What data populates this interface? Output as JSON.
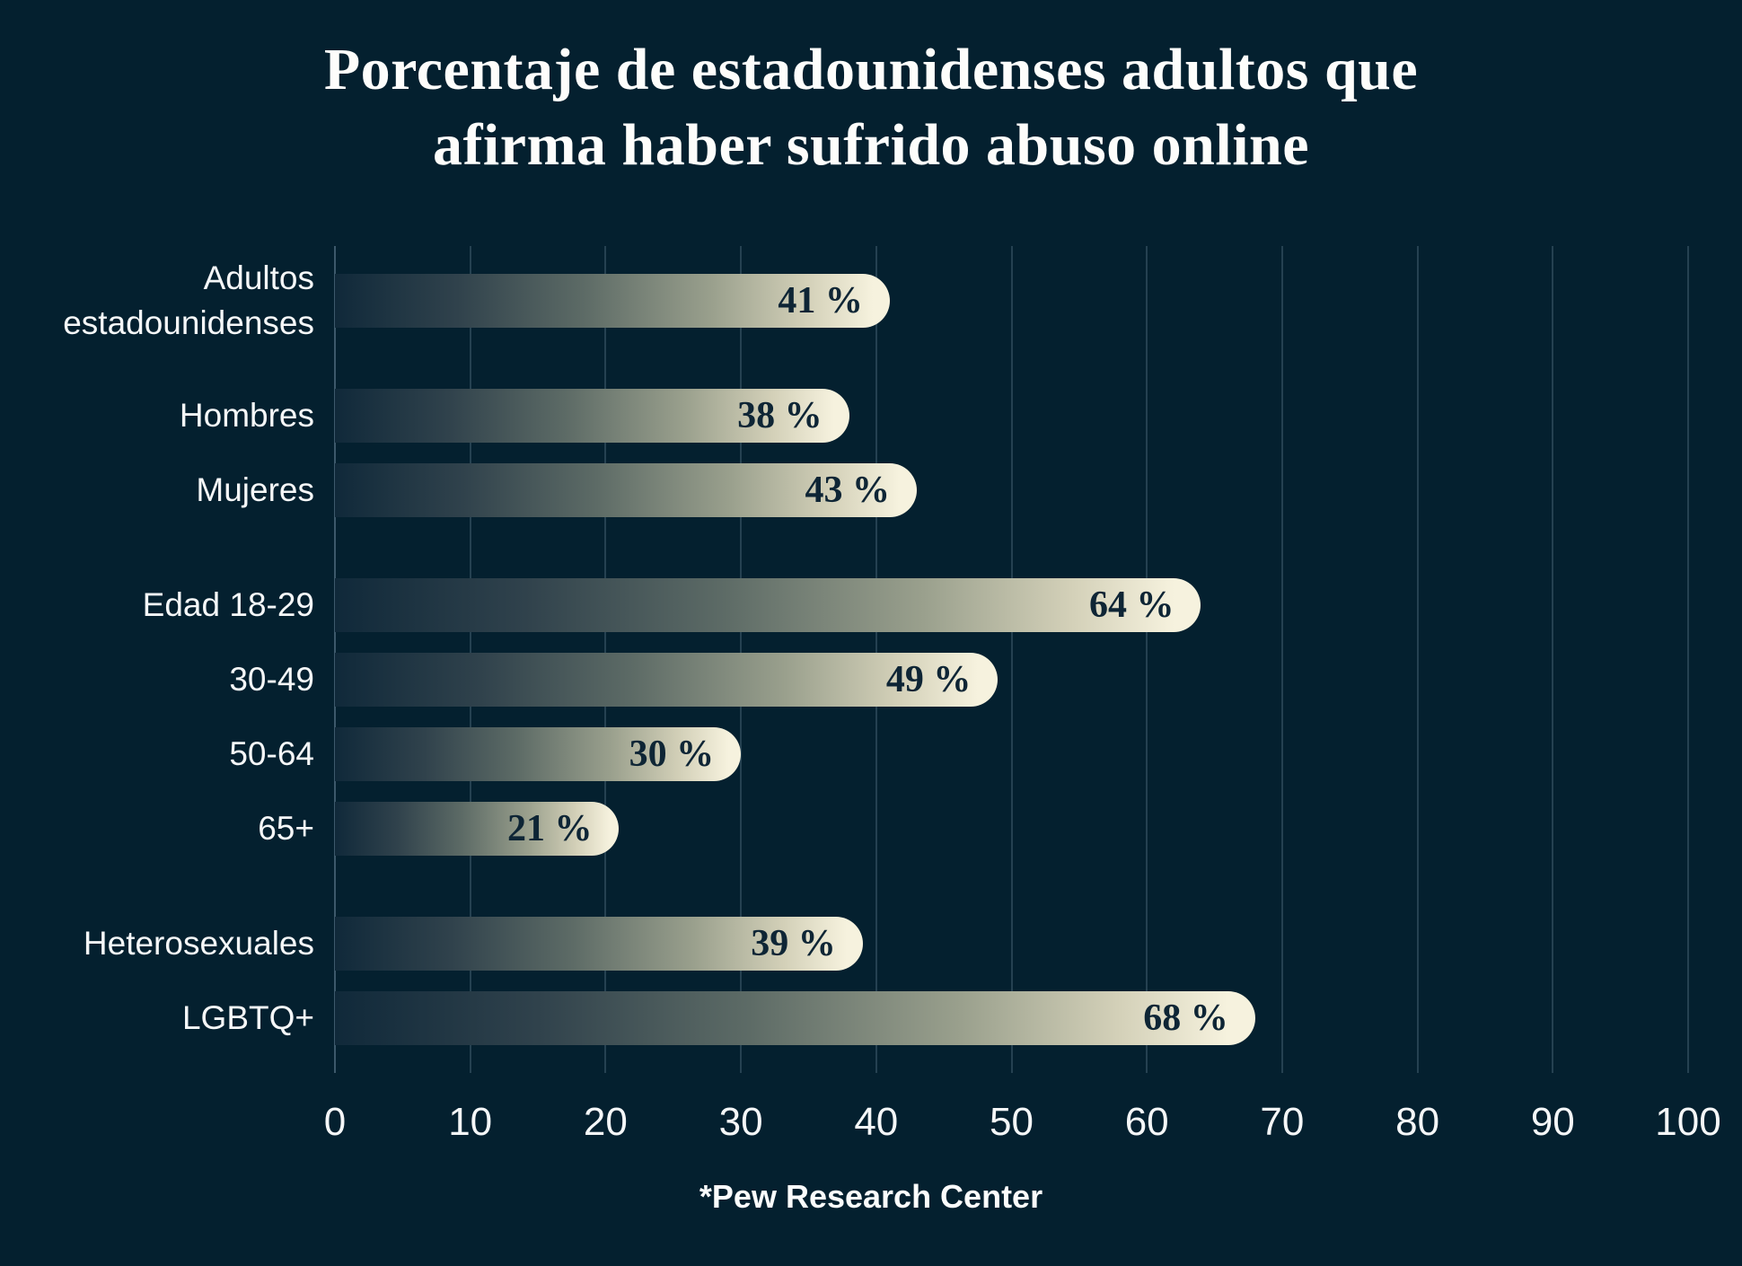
{
  "title": {
    "line1": "Porcentaje de estadounidenses adultos que",
    "line2": "afirma haber sufrido abuso online"
  },
  "source": "*Pew Research Center",
  "colors": {
    "background": "#04202f",
    "bar_end": "#f6f2de",
    "bar_start": "#10293a",
    "value_text": "#0e2535",
    "label_text": "#f5f7f8",
    "gridline": "rgba(154,183,204,0.22)"
  },
  "chart_data": {
    "type": "bar",
    "orientation": "horizontal",
    "title": "Porcentaje de estadounidenses adultos que afirma haber sufrido abuso online",
    "unit": "%",
    "xlim": [
      0,
      100
    ],
    "x_ticks": [
      0,
      10,
      20,
      30,
      40,
      50,
      60,
      70,
      80,
      90,
      100
    ],
    "grid": "vertical",
    "legend": "none",
    "source": "*Pew Research Center",
    "categories": [
      "Adultos estadounidenses",
      "Hombres",
      "Mujeres",
      "Edad 18-29",
      "30-49",
      "50-64",
      "65+",
      "Heterosexuales",
      "LGBTQ+"
    ],
    "values": [
      41,
      38,
      43,
      64,
      49,
      30,
      21,
      39,
      68
    ],
    "rows": [
      {
        "label": "Adultos estadounidenses",
        "value": 41,
        "value_label": "41 %",
        "new_group": false
      },
      {
        "label": "Hombres",
        "value": 38,
        "value_label": "38 %",
        "new_group": true
      },
      {
        "label": "Mujeres",
        "value": 43,
        "value_label": "43 %",
        "new_group": false
      },
      {
        "label": "Edad 18-29",
        "value": 64,
        "value_label": "64 %",
        "new_group": true
      },
      {
        "label": "30-49",
        "value": 49,
        "value_label": "49 %",
        "new_group": false
      },
      {
        "label": "50-64",
        "value": 30,
        "value_label": "30 %",
        "new_group": false
      },
      {
        "label": "65+",
        "value": 21,
        "value_label": "21 %",
        "new_group": false
      },
      {
        "label": "Heterosexuales",
        "value": 39,
        "value_label": "39 %",
        "new_group": true
      },
      {
        "label": "LGBTQ+",
        "value": 68,
        "value_label": "68 %",
        "new_group": false
      }
    ]
  }
}
